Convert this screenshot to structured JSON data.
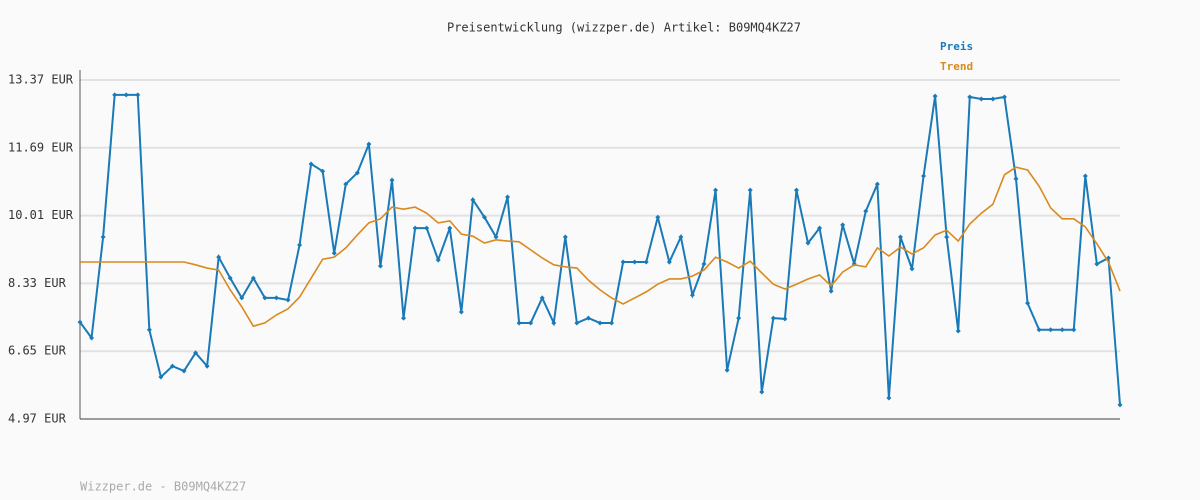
{
  "chart_data": {
    "type": "line",
    "title": "Preisentwicklung (wizzper.de) Artikel: B09MQ4KZ27",
    "footer": "Wizzper.de - B09MQ4KZ27",
    "ylim": [
      4.97,
      13.37
    ],
    "yticks": [
      {
        "value": 4.97,
        "label": "4.97 EUR"
      },
      {
        "value": 6.65,
        "label": "6.65 EUR"
      },
      {
        "value": 8.33,
        "label": "8.33 EUR"
      },
      {
        "value": 10.01,
        "label": "10.01 EUR"
      },
      {
        "value": 11.69,
        "label": "11.69 EUR"
      },
      {
        "value": 13.37,
        "label": "13.37 EUR"
      }
    ],
    "grid": true,
    "legend": "top-right",
    "series": [
      {
        "name": "Preis",
        "color": "#1a7ab8",
        "markers": true,
        "values": [
          7.37,
          6.98,
          9.48,
          13.0,
          13.0,
          13.0,
          7.18,
          6.01,
          6.28,
          6.16,
          6.61,
          6.28,
          8.98,
          8.46,
          7.97,
          8.46,
          7.97,
          7.97,
          7.92,
          9.28,
          11.29,
          11.11,
          9.08,
          10.79,
          11.07,
          11.78,
          8.76,
          10.89,
          7.47,
          9.7,
          9.7,
          8.91,
          9.7,
          7.62,
          10.4,
          9.97,
          9.48,
          10.47,
          7.35,
          7.35,
          7.97,
          7.35,
          9.48,
          7.35,
          7.47,
          7.35,
          7.35,
          8.86,
          8.86,
          8.86,
          9.97,
          8.86,
          9.48,
          8.04,
          8.81,
          10.64,
          6.18,
          7.47,
          10.64,
          5.64,
          7.47,
          7.45,
          10.64,
          9.33,
          9.7,
          8.14,
          9.78,
          8.81,
          10.12,
          10.79,
          5.49,
          9.48,
          8.69,
          10.99,
          12.97,
          9.48,
          7.15,
          12.95,
          12.9,
          12.9,
          12.95,
          10.92,
          7.84,
          7.18,
          7.18,
          7.18,
          7.18,
          10.99,
          8.81,
          8.96,
          5.32
        ]
      },
      {
        "name": "Trend",
        "color": "#d98a1e",
        "markers": false,
        "values": [
          8.86,
          8.86,
          8.86,
          8.86,
          8.86,
          8.86,
          8.86,
          8.86,
          8.86,
          8.86,
          8.79,
          8.71,
          8.66,
          8.17,
          7.75,
          7.27,
          7.35,
          7.55,
          7.7,
          7.99,
          8.46,
          8.93,
          8.98,
          9.21,
          9.53,
          9.83,
          9.93,
          10.22,
          10.17,
          10.22,
          10.07,
          9.83,
          9.88,
          9.55,
          9.5,
          9.33,
          9.41,
          9.38,
          9.36,
          9.16,
          8.96,
          8.79,
          8.74,
          8.71,
          8.41,
          8.17,
          7.97,
          7.82,
          7.97,
          8.12,
          8.31,
          8.44,
          8.44,
          8.51,
          8.66,
          8.98,
          8.86,
          8.71,
          8.88,
          8.59,
          8.31,
          8.19,
          8.31,
          8.44,
          8.54,
          8.27,
          8.61,
          8.79,
          8.74,
          9.21,
          9.01,
          9.23,
          9.06,
          9.21,
          9.53,
          9.65,
          9.38,
          9.8,
          10.07,
          10.29,
          11.02,
          11.21,
          11.14,
          10.74,
          10.2,
          9.93,
          9.93,
          9.73,
          9.31,
          8.86,
          8.14
        ]
      }
    ]
  }
}
